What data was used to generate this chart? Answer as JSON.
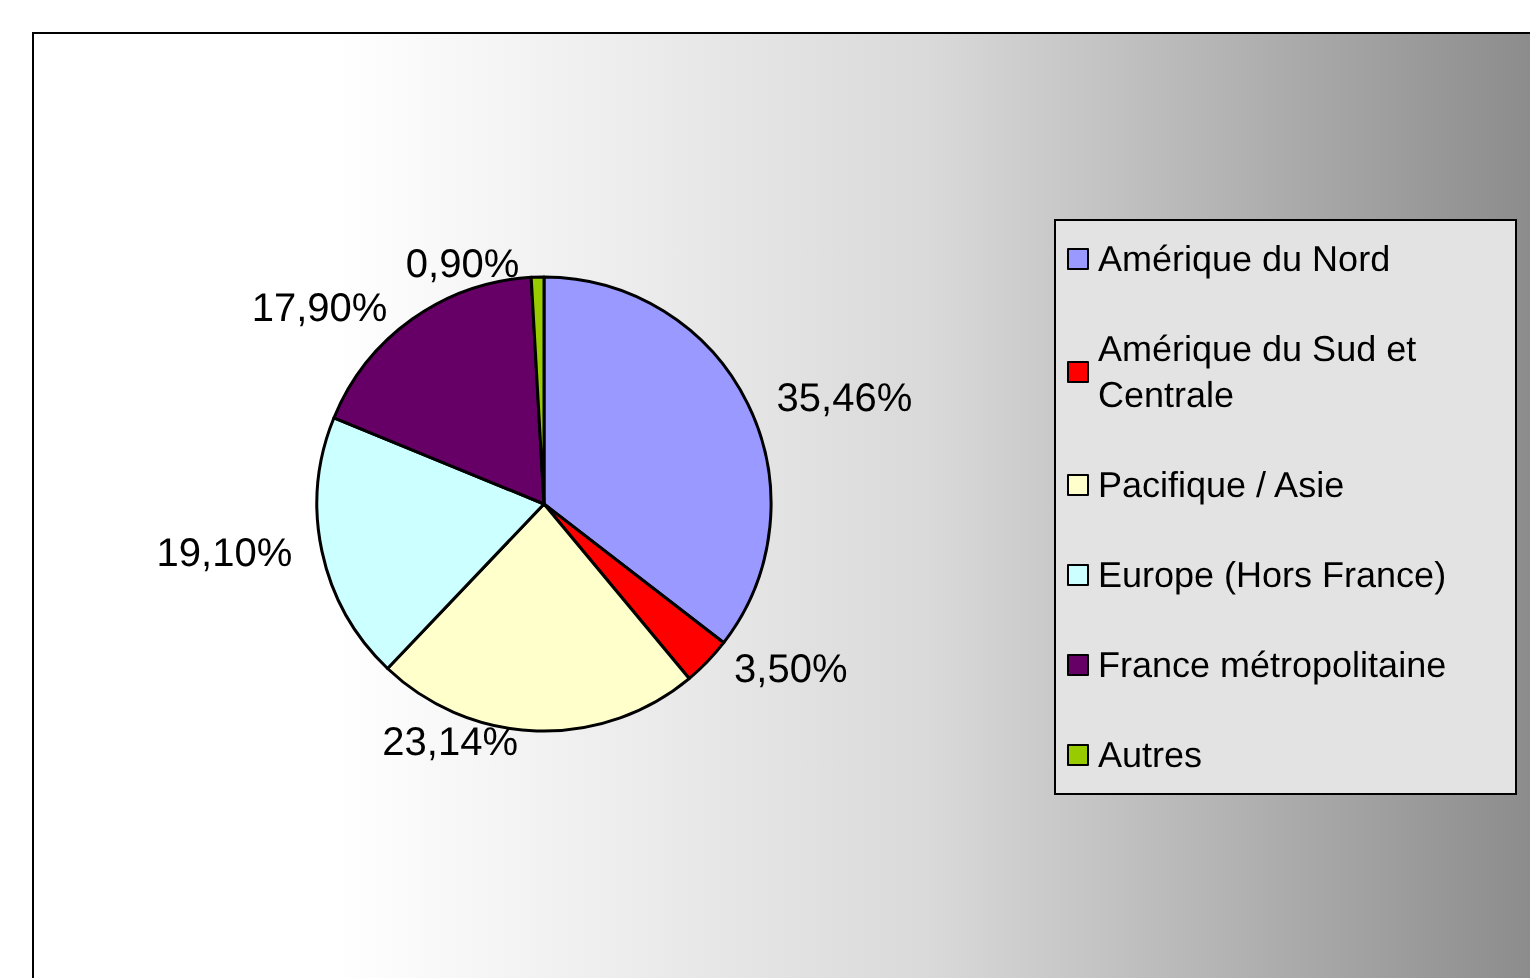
{
  "chart_data": {
    "type": "pie",
    "categories": [
      "Amérique du Nord",
      "Amérique du Sud et Centrale",
      "Pacifique / Asie",
      "Europe (Hors France)",
      "France métropolitaine",
      "Autres"
    ],
    "values": [
      35.46,
      3.5,
      23.14,
      19.1,
      17.9,
      0.9
    ],
    "value_labels": [
      "35,46%",
      "3,50%",
      "23,14%",
      "19,10%",
      "17,90%",
      "0,90%"
    ],
    "colors": [
      "#9999ff",
      "#ff0000",
      "#ffffcc",
      "#ccffff",
      "#660066",
      "#99cc00"
    ],
    "legend": "right"
  }
}
